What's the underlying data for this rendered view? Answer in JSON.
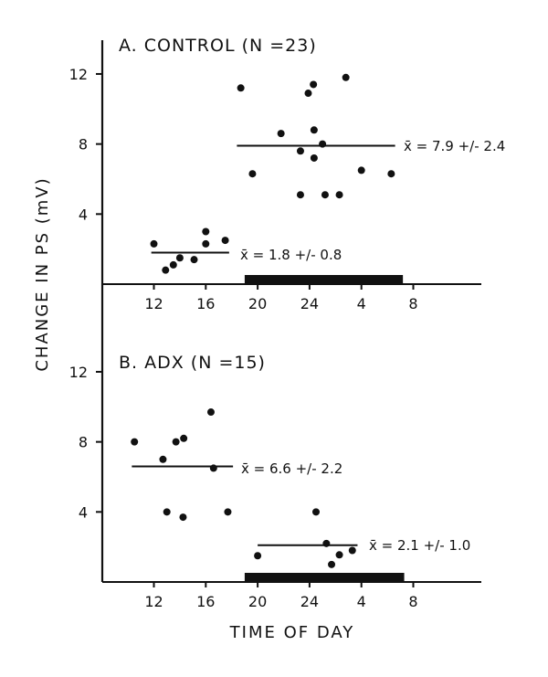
{
  "chart_data": [
    {
      "type": "scatter",
      "title": "A. CONTROL (N =23)",
      "xlabel": "TIME OF DAY",
      "ylabel": "CHANGE IN PS (mV)",
      "x_ticks": [
        12,
        16,
        20,
        24,
        4,
        8
      ],
      "y_ticks": [
        4,
        8,
        12
      ],
      "ylim": [
        0,
        14
      ],
      "dark_period": [
        19,
        7.2
      ],
      "groups": [
        {
          "points": [
            [
              12.0,
              2.3
            ],
            [
              12.9,
              0.8
            ],
            [
              13.5,
              1.1
            ],
            [
              14.0,
              1.5
            ],
            [
              15.1,
              1.4
            ],
            [
              16.0,
              3.0
            ],
            [
              16.0,
              2.3
            ],
            [
              17.5,
              2.5
            ]
          ],
          "mean": 1.8,
          "mean_span": [
            11.8,
            17.8
          ],
          "label": "x̄ = 1.8 +/- 0.8"
        },
        {
          "points": [
            [
              18.7,
              11.2
            ],
            [
              19.6,
              6.3
            ],
            [
              21.8,
              8.6
            ],
            [
              23.3,
              7.6
            ],
            [
              23.3,
              5.1
            ],
            [
              23.9,
              10.9
            ],
            [
              0.3,
              11.4
            ],
            [
              0.35,
              8.8
            ],
            [
              0.35,
              7.2
            ],
            [
              1.0,
              8.0
            ],
            [
              1.2,
              5.1
            ],
            [
              2.3,
              5.1
            ],
            [
              2.8,
              11.8
            ],
            [
              4.0,
              6.5
            ],
            [
              6.3,
              6.3
            ]
          ],
          "mean": 7.9,
          "mean_span": [
            18.4,
            6.6
          ],
          "label": "x̄ = 7.9 +/- 2.4"
        }
      ]
    },
    {
      "type": "scatter",
      "title": "B. ADX (N =15)",
      "xlabel": "TIME OF DAY",
      "ylabel": "CHANGE IN PS (mV)",
      "x_ticks": [
        12,
        16,
        20,
        24,
        4,
        8
      ],
      "y_ticks": [
        4,
        8,
        12
      ],
      "ylim": [
        0,
        14
      ],
      "dark_period": [
        19,
        7.3
      ],
      "groups": [
        {
          "points": [
            [
              10.5,
              8.0
            ],
            [
              12.7,
              7.0
            ],
            [
              13.0,
              4.0
            ],
            [
              13.7,
              8.0
            ],
            [
              14.3,
              8.2
            ],
            [
              14.25,
              3.7
            ],
            [
              16.4,
              9.7
            ],
            [
              16.6,
              6.5
            ],
            [
              17.7,
              4.0
            ]
          ],
          "mean": 6.6,
          "mean_span": [
            10.3,
            18.1
          ],
          "label": "x̄ = 6.6 +/- 2.2"
        },
        {
          "points": [
            [
              20.0,
              1.5
            ],
            [
              0.5,
              4.0
            ],
            [
              1.3,
              2.2
            ],
            [
              1.7,
              1.0
            ],
            [
              2.3,
              1.55
            ],
            [
              3.3,
              1.8
            ]
          ],
          "mean": 2.1,
          "mean_span": [
            20.0,
            3.7
          ],
          "label": "x̄ = 2.1 +/- 1.0"
        }
      ]
    }
  ]
}
